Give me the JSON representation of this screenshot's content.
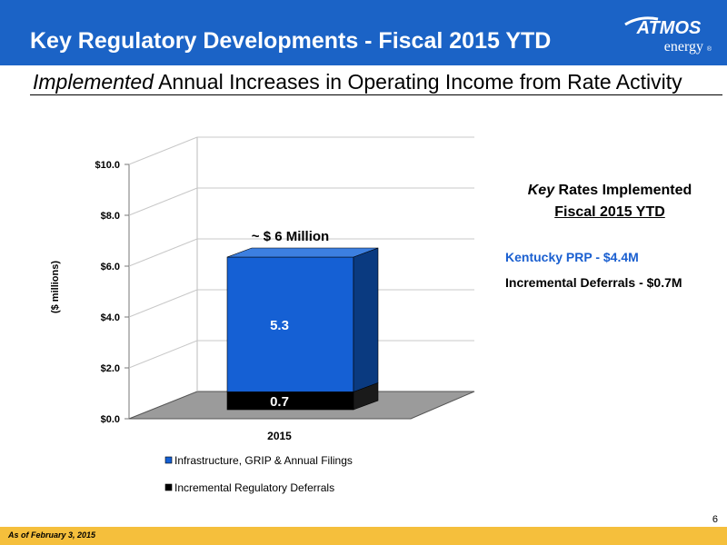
{
  "header": {
    "title": "Key Regulatory Developments - Fiscal 2015 YTD",
    "logo": {
      "line1": "ATMOS",
      "line2": "energy",
      "mark": "®"
    }
  },
  "subtitle": {
    "emphasis": "Implemented",
    "rest": " Annual Increases in Operating Income from Rate Activity"
  },
  "colors": {
    "header": "#1b63c6",
    "series1": "#1560d4",
    "series2": "#000000",
    "kentucky": "#1a5fd0",
    "footer": "#f5bf3c"
  },
  "chart_data": {
    "type": "bar",
    "stacked": true,
    "three_d": true,
    "categories": [
      "2015"
    ],
    "series": [
      {
        "name": "Infrastructure, GRIP & Annual Filings",
        "values": [
          5.3
        ],
        "color": "#1560d4"
      },
      {
        "name": "Incremental Regulatory Deferrals",
        "values": [
          0.7
        ],
        "color": "#000000"
      }
    ],
    "ylabel": "($ millions)",
    "ylim": [
      0,
      10
    ],
    "yticks": [
      "$0.0",
      "$2.0",
      "$4.0",
      "$6.0",
      "$8.0",
      "$10.0"
    ],
    "data_labels": [
      "5.3",
      "0.7"
    ],
    "annotation": "~ $ 6 Million",
    "grid": true,
    "legend_position": "bottom"
  },
  "side": {
    "heading_italic": "Key",
    "heading_rest": " Rates Implemented",
    "heading2": "Fiscal 2015 YTD",
    "items": [
      "Kentucky PRP - $4.4M",
      "Incremental Deferrals - $0.7M"
    ]
  },
  "page_number": "6",
  "footnote": "As of February 3, 2015"
}
